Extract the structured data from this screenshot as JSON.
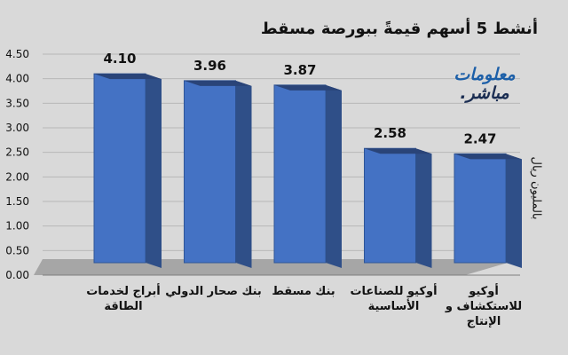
{
  "chart_data": {
    "type": "bar",
    "title": "أنشط 5 أسهم قيمةً ببورصة مسقط",
    "ylabel": "بالمليون ريال",
    "categories": [
      "أبراج لخدمات الطاقة",
      "بنك صحار الدولي",
      "بنك مسقط",
      "أوكيو للصناعات الأساسية",
      "أوكيو للاستكشاف و الإنتاج"
    ],
    "values": [
      4.1,
      3.96,
      3.87,
      2.58,
      2.47
    ],
    "value_labels": [
      "4.10",
      "3.96",
      "3.87",
      "2.58",
      "2.47"
    ],
    "y_ticks": [
      "0.00",
      "0.50",
      "1.00",
      "1.50",
      "2.00",
      "2.50",
      "3.00",
      "3.50",
      "4.00",
      "4.50"
    ],
    "ylim": [
      0,
      4.5
    ],
    "grid": true,
    "legend": "none",
    "bar_color": "#4472c4"
  },
  "logo": {
    "line1": "معلومات",
    "line2": "مباشر."
  }
}
